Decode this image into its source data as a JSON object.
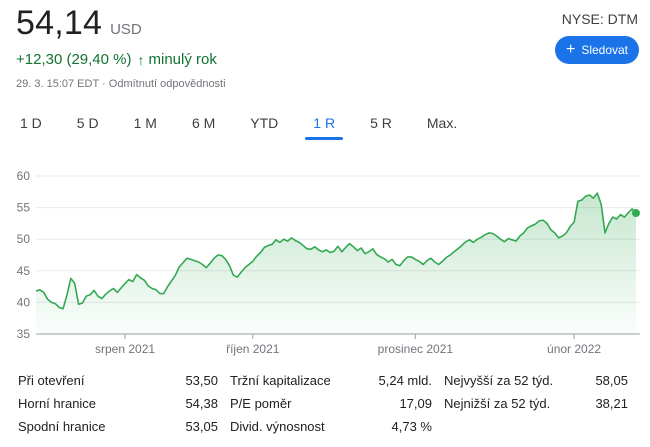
{
  "quote": {
    "price": "54,14",
    "currency": "USD",
    "change": "+12,30 (29,40 %)",
    "change_arrow": "↑",
    "change_period": "minulý rok",
    "timestamp": "29. 3. 15:07 EDT",
    "disclaimer": "Odmítnutí odpovědnosti",
    "exchange": "NYSE: DTM"
  },
  "follow_button": {
    "icon": "plus-icon",
    "label": "Sledovat"
  },
  "tabs": [
    {
      "label": "1 D",
      "active": false
    },
    {
      "label": "5 D",
      "active": false
    },
    {
      "label": "1 M",
      "active": false
    },
    {
      "label": "6 M",
      "active": false
    },
    {
      "label": "YTD",
      "active": false
    },
    {
      "label": "1 R",
      "active": true
    },
    {
      "label": "5 R",
      "active": false
    },
    {
      "label": "Max.",
      "active": false
    }
  ],
  "colors": {
    "accent": "#1a73e8",
    "up": "#137333",
    "line": "#34a853"
  },
  "chart_data": {
    "type": "area",
    "title": "",
    "xlabel": "",
    "ylabel": "",
    "ylim": [
      35,
      60
    ],
    "yticks": [
      "35",
      "40",
      "45",
      "50",
      "55",
      "60"
    ],
    "xtick_labels": [
      {
        "label": "srpen 2021",
        "index": 23
      },
      {
        "label": "říjen 2021",
        "index": 56
      },
      {
        "label": "prosinec 2021",
        "index": 98
      },
      {
        "label": "únor 2022",
        "index": 139
      }
    ],
    "grid": true,
    "series": [
      {
        "values": [
          41.8,
          42.0,
          41.6,
          40.5,
          40.0,
          39.8,
          39.2,
          39.0,
          41.2,
          43.8,
          43.0,
          39.7,
          39.9,
          41.0,
          41.2,
          41.9,
          41.0,
          40.6,
          41.3,
          41.8,
          42.2,
          41.6,
          42.3,
          43.0,
          43.6,
          43.3,
          44.4,
          43.9,
          43.5,
          42.6,
          42.2,
          42.0,
          41.4,
          41.4,
          42.5,
          43.4,
          44.3,
          45.6,
          46.3,
          47.0,
          46.8,
          46.6,
          46.4,
          46.0,
          45.5,
          46.2,
          47.0,
          47.5,
          47.4,
          46.8,
          45.8,
          44.3,
          44.0,
          44.8,
          45.5,
          46.0,
          46.5,
          47.3,
          47.9,
          48.7,
          49.0,
          49.2,
          49.9,
          49.5,
          50.0,
          49.7,
          50.2,
          49.8,
          49.5,
          49.0,
          48.5,
          48.4,
          48.8,
          48.3,
          48.0,
          48.3,
          47.9,
          48.1,
          48.9,
          48.0,
          48.7,
          49.3,
          48.8,
          48.2,
          48.6,
          47.7,
          48.0,
          48.5,
          47.6,
          47.2,
          46.9,
          46.4,
          46.8,
          46.0,
          45.8,
          46.6,
          47.2,
          47.2,
          46.8,
          46.5,
          46.0,
          46.6,
          47.0,
          46.4,
          46.0,
          46.5,
          47.1,
          47.5,
          48.0,
          48.5,
          49.0,
          49.6,
          49.9,
          49.5,
          50.0,
          50.3,
          50.7,
          51.0,
          50.9,
          50.5,
          50.0,
          49.6,
          50.1,
          49.9,
          49.7,
          50.5,
          51.0,
          51.8,
          52.1,
          52.4,
          52.9,
          53.0,
          52.5,
          51.5,
          51.0,
          50.2,
          50.5,
          51.0,
          52.0,
          52.7,
          56.0,
          56.2,
          56.8,
          57.0,
          56.5,
          57.3,
          55.5,
          51.0,
          52.5,
          53.5,
          53.2,
          53.9,
          53.5,
          54.2,
          54.8,
          54.14
        ]
      }
    ]
  },
  "stats": [
    {
      "label": "Při otevření",
      "value": "53,50"
    },
    {
      "label": "Tržní kapitalizace",
      "value": "5,24 mld."
    },
    {
      "label": "Nejvyšší za 52 týd.",
      "value": "58,05"
    },
    {
      "label": "Horní hranice",
      "value": "54,38"
    },
    {
      "label": "P/E poměr",
      "value": "17,09"
    },
    {
      "label": "Nejnižší za 52 týd.",
      "value": "38,21"
    },
    {
      "label": "Spodní hranice",
      "value": "53,05"
    },
    {
      "label": "Divid. výnosnost",
      "value": "4,73 %"
    }
  ]
}
